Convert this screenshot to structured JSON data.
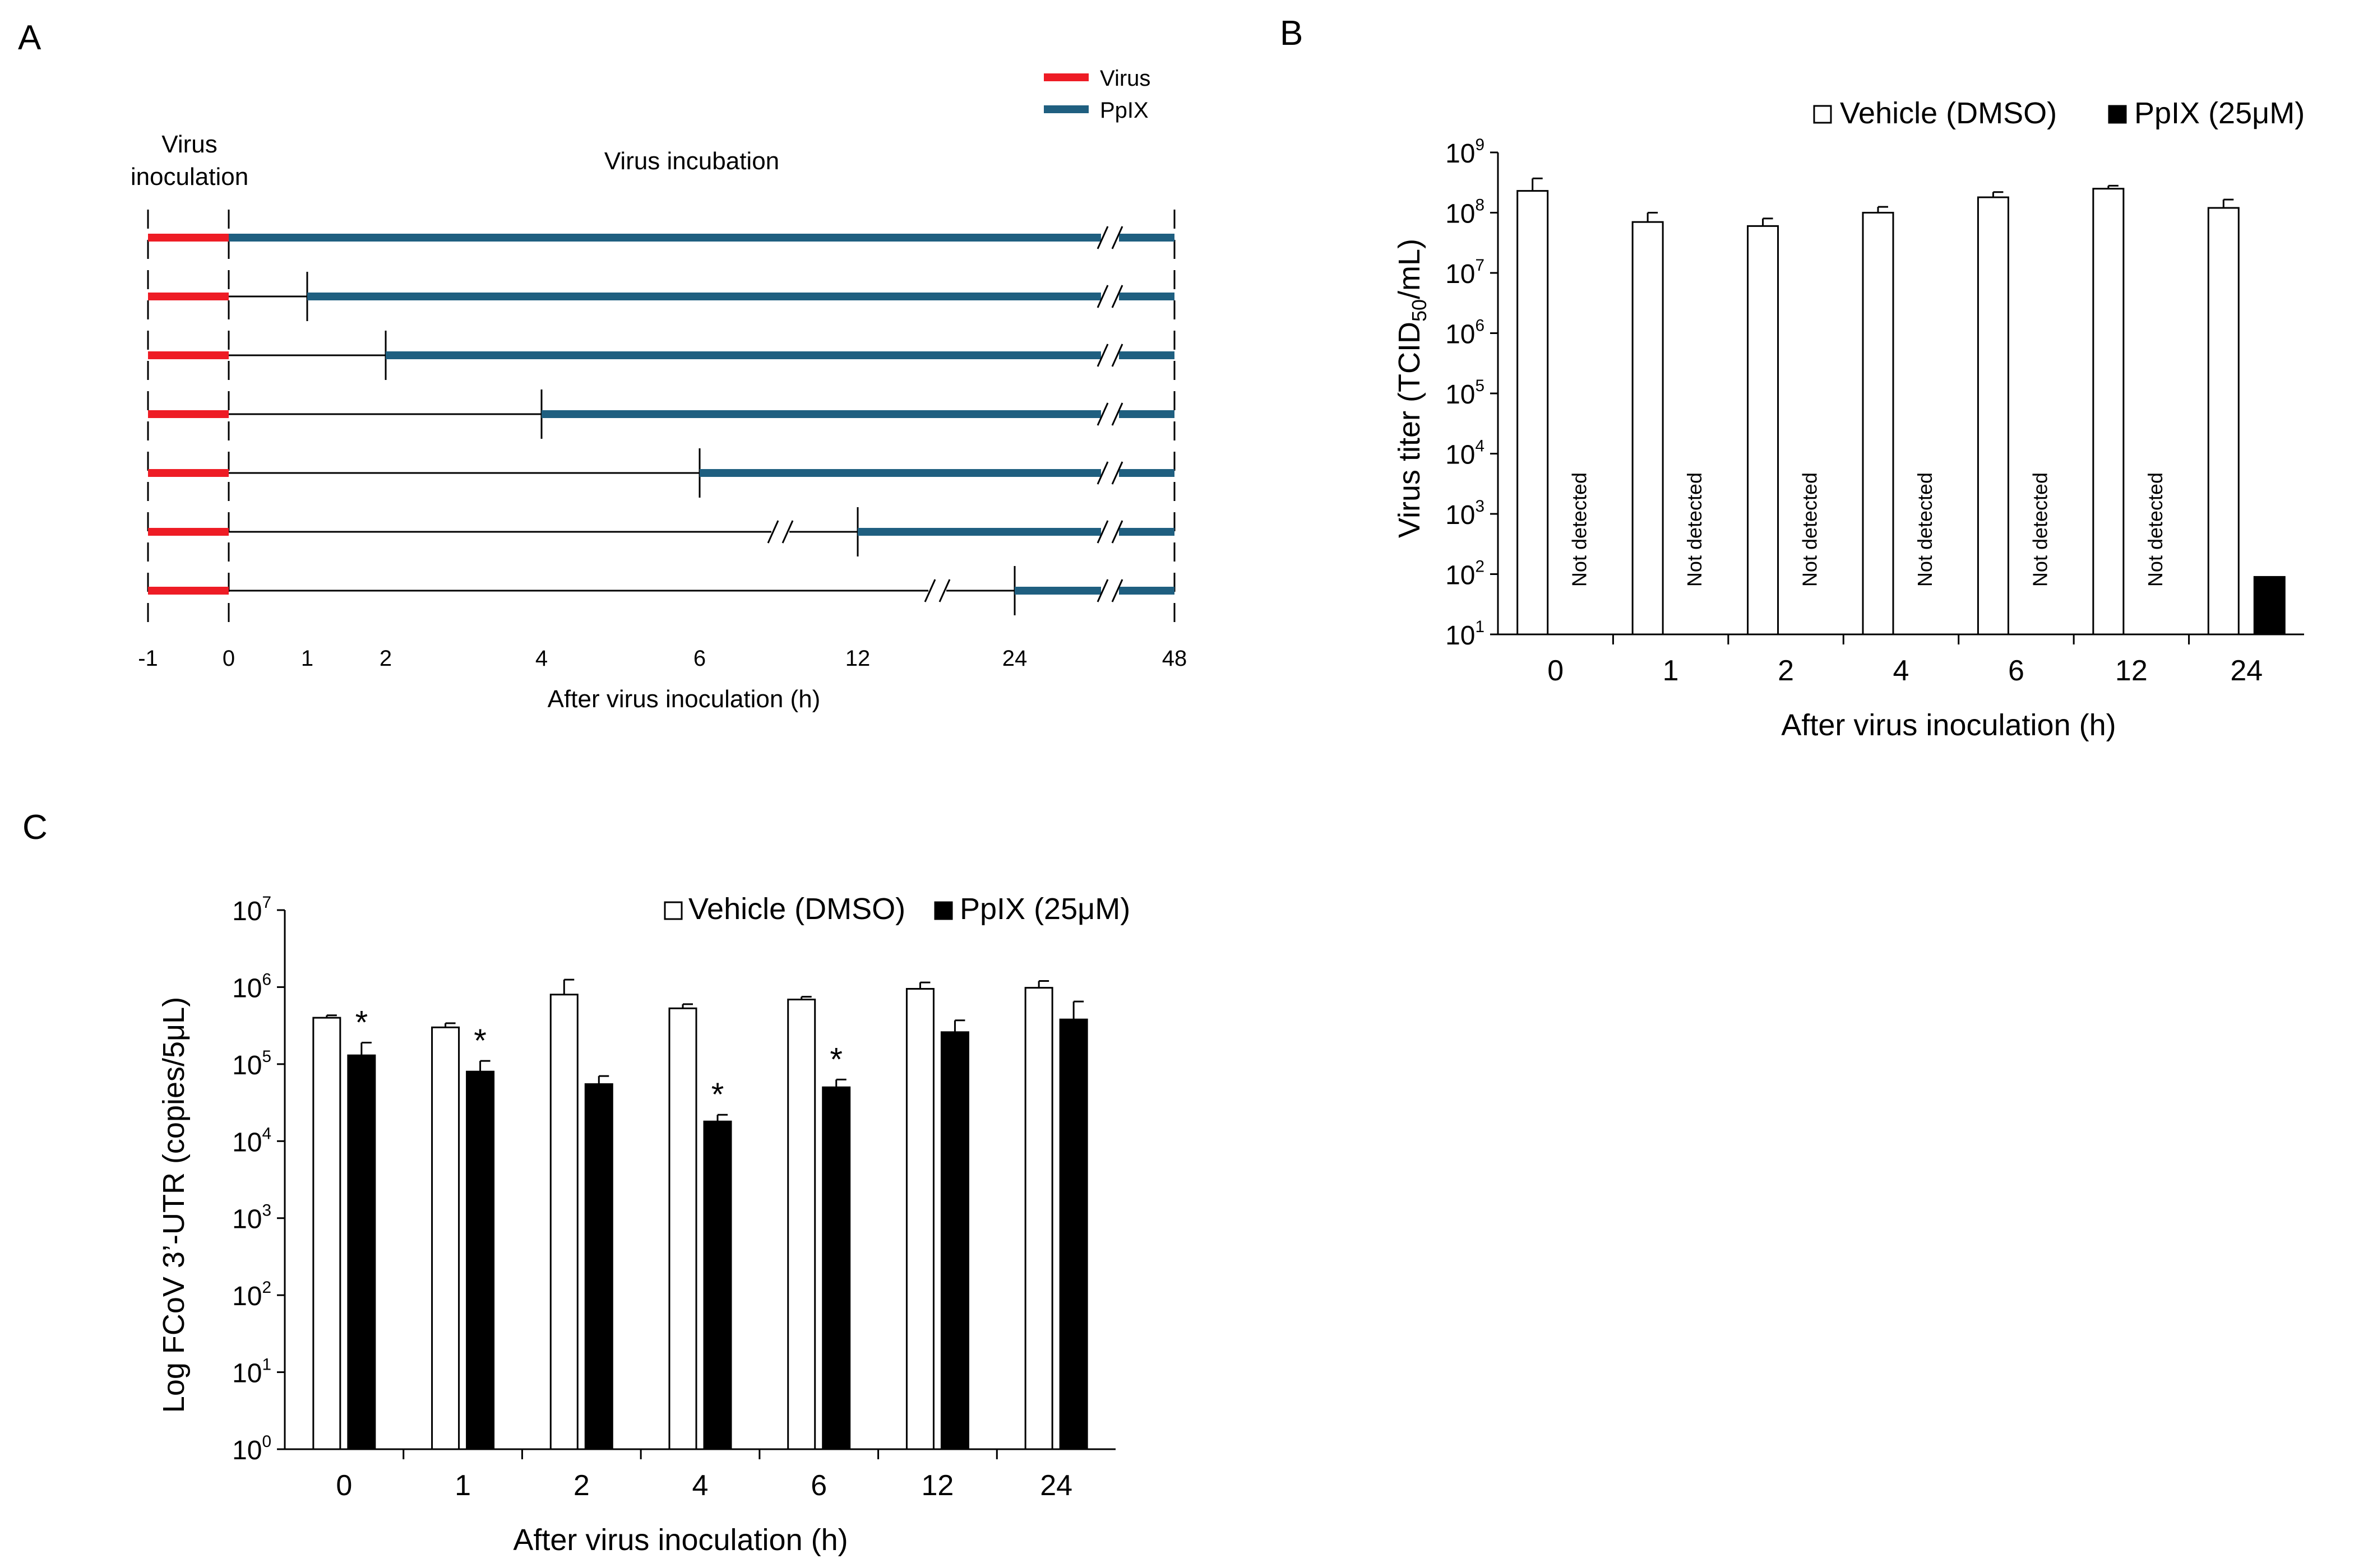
{
  "panels": {
    "A": "A",
    "B": "B",
    "C": "C"
  },
  "colors": {
    "virus": "#ee1c25",
    "pplx": "#1f5f80",
    "vehicle_fill": "#ffffff",
    "pplx_fill": "#000000"
  },
  "panel_a": {
    "legend": [
      {
        "label": "Virus",
        "color": "#ee1c25"
      },
      {
        "label": "PpIX",
        "color": "#1f5f80"
      }
    ],
    "header_inoculation": [
      "Virus",
      "inoculation"
    ],
    "header_incubation": "Virus incubation",
    "tick_labels": [
      "-1",
      "0",
      "1",
      "2",
      "4",
      "6",
      "12",
      "24",
      "48"
    ],
    "xlabel": "After virus inoculation (h)",
    "rows": [
      {
        "pplx_start": "0"
      },
      {
        "pplx_start": "1"
      },
      {
        "pplx_start": "2"
      },
      {
        "pplx_start": "4"
      },
      {
        "pplx_start": "6"
      },
      {
        "pplx_start": "12"
      },
      {
        "pplx_start": "24"
      }
    ]
  },
  "chart_data": [
    {
      "id": "B",
      "type": "bar",
      "yscale": "log",
      "ylim": [
        10.0,
        1000000000.0
      ],
      "yticks": [
        {
          "base": "10",
          "exp": "1"
        },
        {
          "base": "10",
          "exp": "2"
        },
        {
          "base": "10",
          "exp": "3"
        },
        {
          "base": "10",
          "exp": "4"
        },
        {
          "base": "10",
          "exp": "5"
        },
        {
          "base": "10",
          "exp": "6"
        },
        {
          "base": "10",
          "exp": "7"
        },
        {
          "base": "10",
          "exp": "8"
        },
        {
          "base": "10",
          "exp": "9"
        }
      ],
      "ylabel_parts": [
        "Virus titer (TCID",
        "50",
        "/mL)"
      ],
      "xlabel": "After virus inoculation (h)",
      "categories": [
        "0",
        "1",
        "2",
        "4",
        "6",
        "12",
        "24"
      ],
      "legend_placement": "top-right",
      "series": [
        {
          "name": "Vehicle (DMSO)",
          "values": [
            230000000,
            70000000,
            60000000,
            100000000,
            180000000,
            250000000,
            120000000
          ],
          "err_hi": [
            370000000,
            100000000,
            80000000,
            125000000,
            220000000,
            280000000,
            165000000
          ]
        },
        {
          "name": "PpIX (25μM)",
          "values": [
            null,
            null,
            null,
            null,
            null,
            null,
            90
          ],
          "err_hi": [
            null,
            null,
            null,
            null,
            null,
            null,
            null
          ]
        }
      ],
      "not_detected_label": "Not detected",
      "not_detected_categories": [
        "0",
        "1",
        "2",
        "4",
        "6",
        "12"
      ]
    },
    {
      "id": "C",
      "type": "bar",
      "yscale": "log",
      "ylim": [
        1,
        10000000.0
      ],
      "yticks": [
        {
          "base": "10",
          "exp": "0"
        },
        {
          "base": "10",
          "exp": "1"
        },
        {
          "base": "10",
          "exp": "2"
        },
        {
          "base": "10",
          "exp": "3"
        },
        {
          "base": "10",
          "exp": "4"
        },
        {
          "base": "10",
          "exp": "5"
        },
        {
          "base": "10",
          "exp": "6"
        },
        {
          "base": "10",
          "exp": "7"
        }
      ],
      "ylabel": "Log FCoV 3’-UTR (copies/5μL)",
      "xlabel": "After virus inoculation (h)",
      "categories": [
        "0",
        "1",
        "2",
        "4",
        "6",
        "12",
        "24"
      ],
      "legend_placement": "top-right",
      "series": [
        {
          "name": "Vehicle (DMSO)",
          "values": [
            400000,
            300000,
            800000,
            530000,
            690000,
            950000,
            980000
          ],
          "err_hi": [
            430000,
            340000,
            1250000,
            600000,
            750000,
            1150000,
            1200000
          ]
        },
        {
          "name": "PpIX (25μM)",
          "values": [
            130000,
            80000,
            55000,
            18000,
            50000,
            260000,
            380000
          ],
          "err_hi": [
            190000,
            110000,
            70000,
            22000,
            63000,
            370000,
            650000
          ]
        }
      ],
      "significance": [
        {
          "category": "0",
          "label": "*"
        },
        {
          "category": "1",
          "label": "*"
        },
        {
          "category": "4",
          "label": "*"
        },
        {
          "category": "6",
          "label": "*"
        }
      ]
    }
  ]
}
